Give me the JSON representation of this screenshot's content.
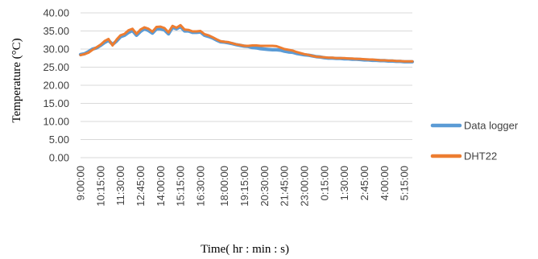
{
  "chart_data": {
    "type": "line",
    "title": "",
    "xlabel": "Time( hr : min : s)",
    "ylabel": "Temperature (°C)",
    "ylim": [
      0,
      40
    ],
    "yticks": [
      "0.00",
      "5.00",
      "10.00",
      "15.00",
      "20.00",
      "25.00",
      "30.00",
      "35.00",
      "40.00"
    ],
    "xtick_labels": [
      "9:00:00",
      "10:15:00",
      "11:30:00",
      "12:45:00",
      "14:00:00",
      "15:15:00",
      "16:30:00",
      "18:00:00",
      "19:15:00",
      "20:30:00",
      "21:45:00",
      "23:00:00",
      "0:15:00",
      "1:30:00",
      "2:45:00",
      "4:00:00",
      "5:15:00"
    ],
    "grid": "horizontal",
    "legend_position": "right",
    "x": [
      "9:00:00",
      "9:15:00",
      "9:30:00",
      "9:45:00",
      "10:00:00",
      "10:15:00",
      "10:30:00",
      "10:45:00",
      "11:00:00",
      "11:15:00",
      "11:30:00",
      "11:45:00",
      "12:00:00",
      "12:15:00",
      "12:30:00",
      "12:45:00",
      "13:00:00",
      "13:15:00",
      "13:30:00",
      "13:45:00",
      "14:00:00",
      "14:15:00",
      "14:30:00",
      "14:45:00",
      "15:00:00",
      "15:15:00",
      "15:30:00",
      "15:45:00",
      "16:00:00",
      "16:15:00",
      "16:30:00",
      "16:45:00",
      "17:00:00",
      "17:15:00",
      "17:30:00",
      "17:45:00",
      "18:00:00",
      "18:15:00",
      "18:30:00",
      "18:45:00",
      "19:00:00",
      "19:15:00",
      "19:30:00",
      "19:45:00",
      "20:00:00",
      "20:15:00",
      "20:30:00",
      "20:45:00",
      "21:00:00",
      "21:15:00",
      "21:30:00",
      "21:45:00",
      "22:00:00",
      "22:15:00",
      "22:30:00",
      "22:45:00",
      "23:00:00",
      "23:15:00",
      "23:30:00",
      "23:45:00",
      "0:00:00",
      "0:15:00",
      "0:30:00",
      "0:45:00",
      "1:00:00",
      "1:15:00",
      "1:30:00",
      "1:45:00",
      "2:00:00",
      "2:15:00",
      "2:30:00",
      "2:45:00",
      "3:00:00",
      "3:15:00",
      "3:30:00",
      "3:45:00",
      "4:00:00",
      "4:15:00",
      "4:30:00",
      "4:45:00",
      "5:00:00",
      "5:15:00",
      "5:30:00",
      "5:45:00"
    ],
    "series": [
      {
        "name": "Data logger",
        "color": "#5b9bd5",
        "values": [
          28.5,
          28.7,
          29.3,
          30.0,
          30.3,
          31.0,
          31.8,
          32.4,
          31.3,
          32.2,
          33.4,
          33.8,
          34.6,
          35.1,
          33.8,
          34.9,
          35.6,
          35.1,
          34.4,
          35.6,
          35.6,
          35.3,
          34.2,
          36.0,
          35.6,
          36.2,
          35.0,
          35.0,
          34.6,
          34.6,
          34.7,
          33.8,
          33.5,
          33.1,
          32.5,
          32.0,
          31.9,
          31.7,
          31.5,
          31.2,
          31.0,
          30.8,
          30.7,
          30.4,
          30.3,
          30.1,
          30.0,
          29.9,
          29.8,
          29.8,
          29.7,
          29.4,
          29.2,
          29.1,
          28.8,
          28.6,
          28.4,
          28.3,
          28.1,
          27.9,
          27.8,
          27.6,
          27.5,
          27.5,
          27.4,
          27.4,
          27.3,
          27.3,
          27.2,
          27.2,
          27.1,
          27.0,
          27.0,
          26.9,
          26.9,
          26.8,
          26.8,
          26.7,
          26.7,
          26.6,
          26.6,
          26.5,
          26.5,
          26.5
        ]
      },
      {
        "name": "DHT22",
        "color": "#ed7d31",
        "values": [
          28.3,
          28.6,
          29.0,
          29.8,
          30.5,
          31.2,
          32.2,
          32.8,
          31.0,
          32.6,
          33.8,
          34.2,
          35.2,
          35.6,
          34.2,
          35.4,
          36.0,
          35.6,
          34.8,
          36.1,
          36.2,
          35.8,
          34.6,
          36.4,
          35.9,
          36.6,
          35.4,
          35.3,
          34.9,
          34.9,
          35.0,
          34.1,
          33.8,
          33.3,
          32.7,
          32.2,
          32.0,
          31.9,
          31.6,
          31.3,
          31.1,
          30.9,
          30.9,
          31.0,
          31.0,
          30.9,
          30.9,
          30.9,
          30.9,
          30.8,
          30.4,
          30.0,
          29.8,
          29.6,
          29.2,
          28.9,
          28.6,
          28.4,
          28.1,
          27.9,
          27.8,
          27.7,
          27.6,
          27.6,
          27.5,
          27.5,
          27.5,
          27.4,
          27.4,
          27.3,
          27.3,
          27.2,
          27.1,
          27.1,
          27.0,
          26.9,
          26.9,
          26.8,
          26.8,
          26.7,
          26.7,
          26.6,
          26.6,
          26.6
        ]
      }
    ]
  }
}
